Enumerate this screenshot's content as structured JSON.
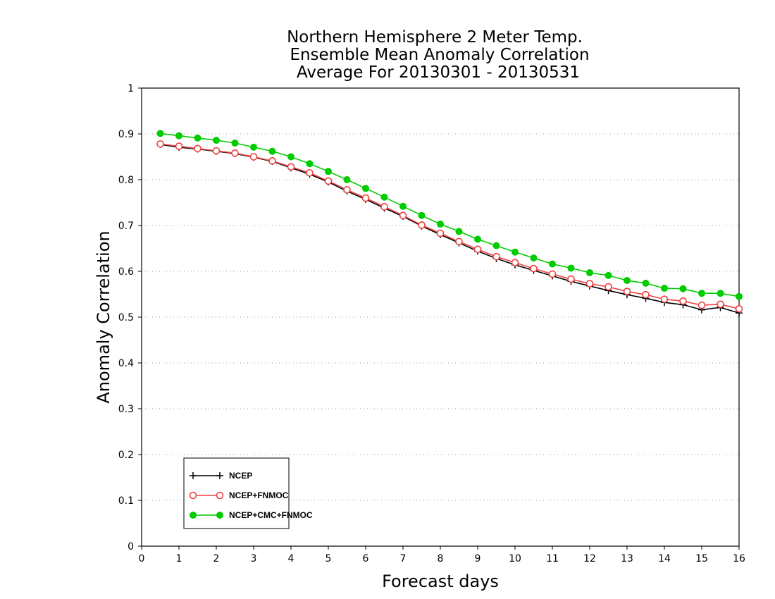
{
  "chart_data": {
    "type": "line",
    "title": [
      "Northern Hemisphere 2 Meter Temp.",
      "Ensemble Mean Anomaly Correlation",
      "Average For 20130301 - 20130531"
    ],
    "xlabel": "Forecast days",
    "ylabel": "Anomaly Correlation",
    "xlim": [
      0,
      16
    ],
    "ylim": [
      0,
      1
    ],
    "xticks": [
      "0",
      "1",
      "2",
      "3",
      "4",
      "5",
      "6",
      "7",
      "8",
      "9",
      "10",
      "11",
      "12",
      "13",
      "14",
      "15",
      "16"
    ],
    "yticks": [
      "0",
      "0.1",
      "0.2",
      "0.3",
      "0.4",
      "0.5",
      "0.6",
      "0.7",
      "0.8",
      "0.9",
      "1"
    ],
    "grid": "horizontal dotted",
    "legend_position": "bottom-left",
    "x": [
      0.5,
      1,
      1.5,
      2,
      2.5,
      3,
      3.5,
      4,
      4.5,
      5,
      5.5,
      6,
      6.5,
      7,
      7.5,
      8,
      8.5,
      9,
      9.5,
      10,
      10.5,
      11,
      11.5,
      12,
      12.5,
      13,
      13.5,
      14,
      14.5,
      15,
      15.5,
      16
    ],
    "series": [
      {
        "name": "NCEP",
        "color": "#000000",
        "marker": "plus",
        "values": [
          0.877,
          0.871,
          0.867,
          0.862,
          0.857,
          0.849,
          0.84,
          0.826,
          0.812,
          0.795,
          0.775,
          0.757,
          0.738,
          0.72,
          0.699,
          0.68,
          0.662,
          0.644,
          0.628,
          0.614,
          0.602,
          0.59,
          0.578,
          0.568,
          0.558,
          0.549,
          0.541,
          0.532,
          0.527,
          0.516,
          0.521,
          0.509
        ]
      },
      {
        "name": "NCEP+FNMOC",
        "color": "#f04040",
        "marker": "open-circle",
        "values": [
          0.878,
          0.873,
          0.868,
          0.863,
          0.858,
          0.85,
          0.841,
          0.828,
          0.815,
          0.797,
          0.778,
          0.76,
          0.741,
          0.722,
          0.701,
          0.683,
          0.665,
          0.648,
          0.632,
          0.619,
          0.606,
          0.594,
          0.583,
          0.573,
          0.566,
          0.556,
          0.549,
          0.539,
          0.535,
          0.526,
          0.528,
          0.518
        ]
      },
      {
        "name": "NCEP+CMC+FNMOC",
        "color": "#00cc00",
        "marker": "filled-circle",
        "values": [
          0.901,
          0.896,
          0.891,
          0.886,
          0.88,
          0.871,
          0.862,
          0.85,
          0.835,
          0.818,
          0.8,
          0.781,
          0.762,
          0.742,
          0.722,
          0.703,
          0.687,
          0.67,
          0.656,
          0.642,
          0.629,
          0.616,
          0.607,
          0.597,
          0.591,
          0.58,
          0.574,
          0.563,
          0.562,
          0.552,
          0.552,
          0.545
        ]
      }
    ]
  }
}
